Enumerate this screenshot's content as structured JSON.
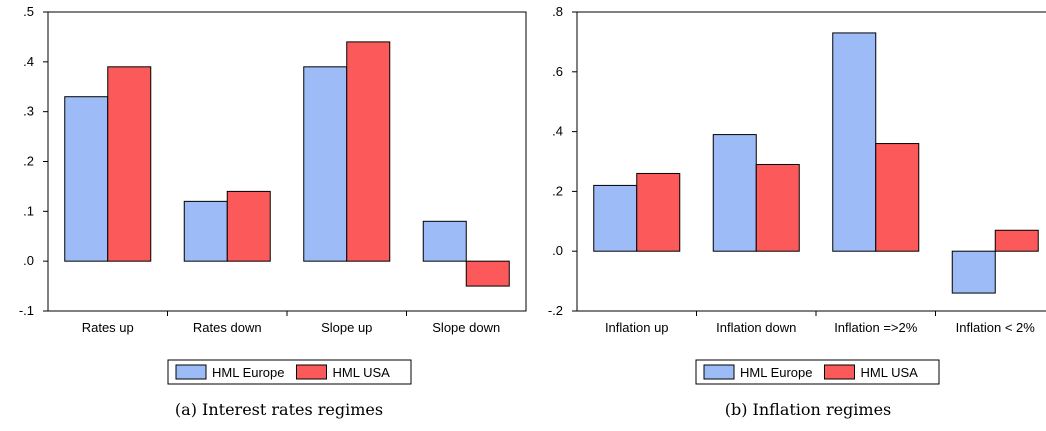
{
  "chart_data": [
    {
      "type": "bar",
      "caption": "(a) Interest rates regimes",
      "categories": [
        "Rates up",
        "Rates down",
        "Slope up",
        "Slope down"
      ],
      "series": [
        {
          "name": "HML Europe",
          "color": "#9dbcf7",
          "values": [
            0.33,
            0.12,
            0.39,
            0.08
          ]
        },
        {
          "name": "HML USA",
          "color": "#fc5a5a",
          "values": [
            0.39,
            0.14,
            0.44,
            -0.05
          ]
        }
      ],
      "ylim": [
        -0.1,
        0.5
      ],
      "yticks": [
        -0.1,
        0.0,
        0.1,
        0.2,
        0.3,
        0.4,
        0.5
      ],
      "ytick_labels": [
        "-.1",
        ".0",
        ".1",
        ".2",
        ".3",
        ".4",
        ".5"
      ],
      "grid": false,
      "legend_position": "bottom-center"
    },
    {
      "type": "bar",
      "caption": "(b) Inflation regimes",
      "categories": [
        "Inflation up",
        "Inflation down",
        "Inflation =>2%",
        "Inflation < 2%"
      ],
      "series": [
        {
          "name": "HML Europe",
          "color": "#9dbcf7",
          "values": [
            0.22,
            0.39,
            0.73,
            -0.14
          ]
        },
        {
          "name": "HML USA",
          "color": "#fc5a5a",
          "values": [
            0.26,
            0.29,
            0.36,
            0.07
          ]
        }
      ],
      "ylim": [
        -0.2,
        0.8
      ],
      "yticks": [
        -0.2,
        0.0,
        0.2,
        0.4,
        0.6,
        0.8
      ],
      "ytick_labels": [
        "-.2",
        ".0",
        ".2",
        ".4",
        ".6",
        ".8"
      ],
      "grid": false,
      "legend_position": "bottom-center"
    }
  ]
}
